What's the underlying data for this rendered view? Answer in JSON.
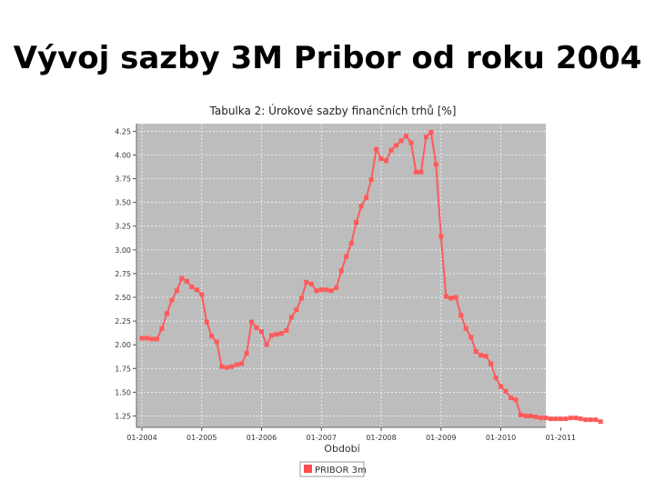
{
  "slide": {
    "title": "Vývoj sazby 3M Pribor od roku 2004"
  },
  "chart_data": {
    "type": "line",
    "title": "Tabulka 2: Úrokové sazby finančních trhů [%]",
    "xlabel": "Období",
    "ylabel": "",
    "y_ticks": [
      "4.25",
      "4.00",
      "3.75",
      "3.50",
      "3.25",
      "3.00",
      "2.75",
      "2.50",
      "2.25",
      "2.00",
      "1.75",
      "1.50",
      "1.25"
    ],
    "x_ticks": [
      "01-2004",
      "01-2005",
      "01-2006",
      "01-2007",
      "01-2008",
      "01-2009",
      "01-2010",
      "01-2011"
    ],
    "ylim": [
      1.13,
      4.33
    ],
    "grid": true,
    "legend": "bottom",
    "series": [
      {
        "name": "PRIBOR 3m",
        "color": "#ff5a5a",
        "x": [
          "2004-01",
          "2004-02",
          "2004-03",
          "2004-04",
          "2004-05",
          "2004-06",
          "2004-07",
          "2004-08",
          "2004-09",
          "2004-10",
          "2004-11",
          "2004-12",
          "2005-01",
          "2005-02",
          "2005-03",
          "2005-04",
          "2005-05",
          "2005-06",
          "2005-07",
          "2005-08",
          "2005-09",
          "2005-10",
          "2005-11",
          "2005-12",
          "2006-01",
          "2006-02",
          "2006-03",
          "2006-04",
          "2006-05",
          "2006-06",
          "2006-07",
          "2006-08",
          "2006-09",
          "2006-10",
          "2006-11",
          "2006-12",
          "2007-01",
          "2007-02",
          "2007-03",
          "2007-04",
          "2007-05",
          "2007-06",
          "2007-07",
          "2007-08",
          "2007-09",
          "2007-10",
          "2007-11",
          "2007-12",
          "2008-01",
          "2008-02",
          "2008-03",
          "2008-04",
          "2008-05",
          "2008-06",
          "2008-07",
          "2008-08",
          "2008-09",
          "2008-10",
          "2008-11",
          "2008-12",
          "2009-01",
          "2009-02",
          "2009-03",
          "2009-04",
          "2009-05",
          "2009-06",
          "2009-07",
          "2009-08",
          "2009-09",
          "2009-10",
          "2009-11",
          "2009-12",
          "2010-01",
          "2010-02",
          "2010-03",
          "2010-04",
          "2010-05",
          "2010-06",
          "2010-07",
          "2010-08",
          "2010-09",
          "2010-10",
          "2010-11",
          "2010-12",
          "2011-01",
          "2011-02",
          "2011-03",
          "2011-04",
          "2011-05",
          "2011-06",
          "2011-07",
          "2011-08",
          "2011-09"
        ],
        "values": [
          2.07,
          2.07,
          2.06,
          2.06,
          2.17,
          2.33,
          2.47,
          2.57,
          2.7,
          2.67,
          2.61,
          2.58,
          2.53,
          2.24,
          2.09,
          2.03,
          1.77,
          1.76,
          1.77,
          1.79,
          1.8,
          1.91,
          2.24,
          2.18,
          2.14,
          2.0,
          2.1,
          2.11,
          2.12,
          2.15,
          2.29,
          2.37,
          2.49,
          2.66,
          2.64,
          2.57,
          2.58,
          2.58,
          2.57,
          2.6,
          2.78,
          2.93,
          3.07,
          3.29,
          3.46,
          3.55,
          3.74,
          4.06,
          3.96,
          3.94,
          4.05,
          4.1,
          4.15,
          4.2,
          4.13,
          3.82,
          3.82,
          4.19,
          4.24,
          3.9,
          3.14,
          2.51,
          2.49,
          2.5,
          2.31,
          2.17,
          2.08,
          1.93,
          1.89,
          1.88,
          1.8,
          1.65,
          1.56,
          1.51,
          1.44,
          1.42,
          1.26,
          1.25,
          1.25,
          1.24,
          1.23,
          1.23,
          1.22,
          1.22,
          1.22,
          1.22,
          1.23,
          1.23,
          1.22,
          1.21,
          1.21,
          1.21,
          1.19
        ]
      }
    ]
  },
  "colors": {
    "plot_background": "#bdbdbd",
    "grid": "#ffffff",
    "series_line": "#ff5a5a",
    "legend_marker": "#ff4d4d"
  }
}
